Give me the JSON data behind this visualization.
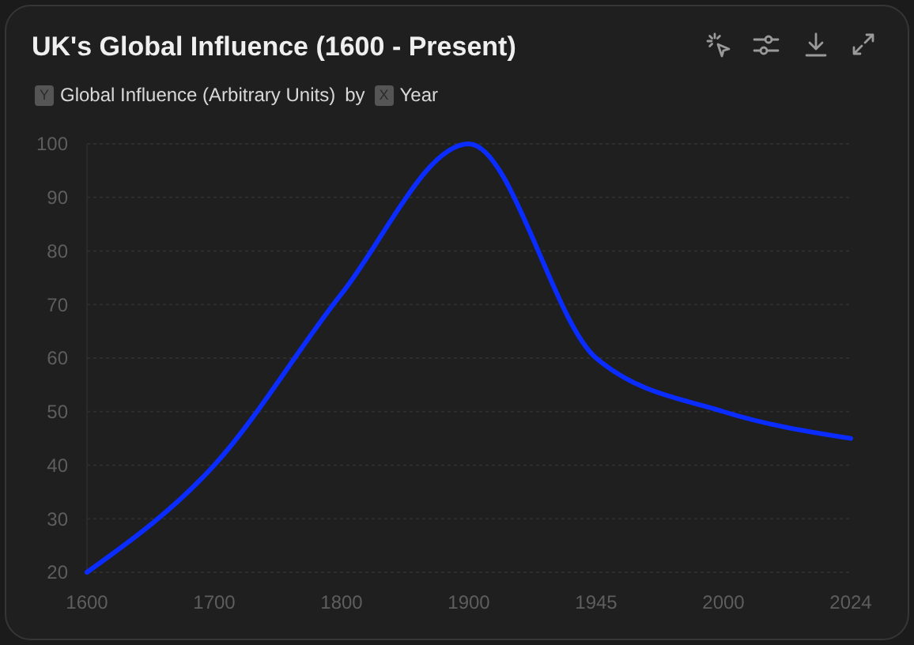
{
  "chart_data": {
    "type": "line",
    "title": "UK's Global Influence (1600 - Present)",
    "subtitle": "by",
    "ylabel": "Global Influence (Arbitrary Units)",
    "xlabel": "Year",
    "annotations": [
      "Y",
      "X"
    ],
    "categories": [
      "1600",
      "1700",
      "1800",
      "1900",
      "1945",
      "2000",
      "2024"
    ],
    "values": [
      20,
      40,
      72,
      100,
      60,
      50,
      45
    ],
    "color": "#0a2cff",
    "ylim": [
      20,
      100
    ],
    "yticks": [
      20,
      30,
      40,
      50,
      60,
      70,
      80,
      90,
      100
    ],
    "grid": "y"
  }
}
